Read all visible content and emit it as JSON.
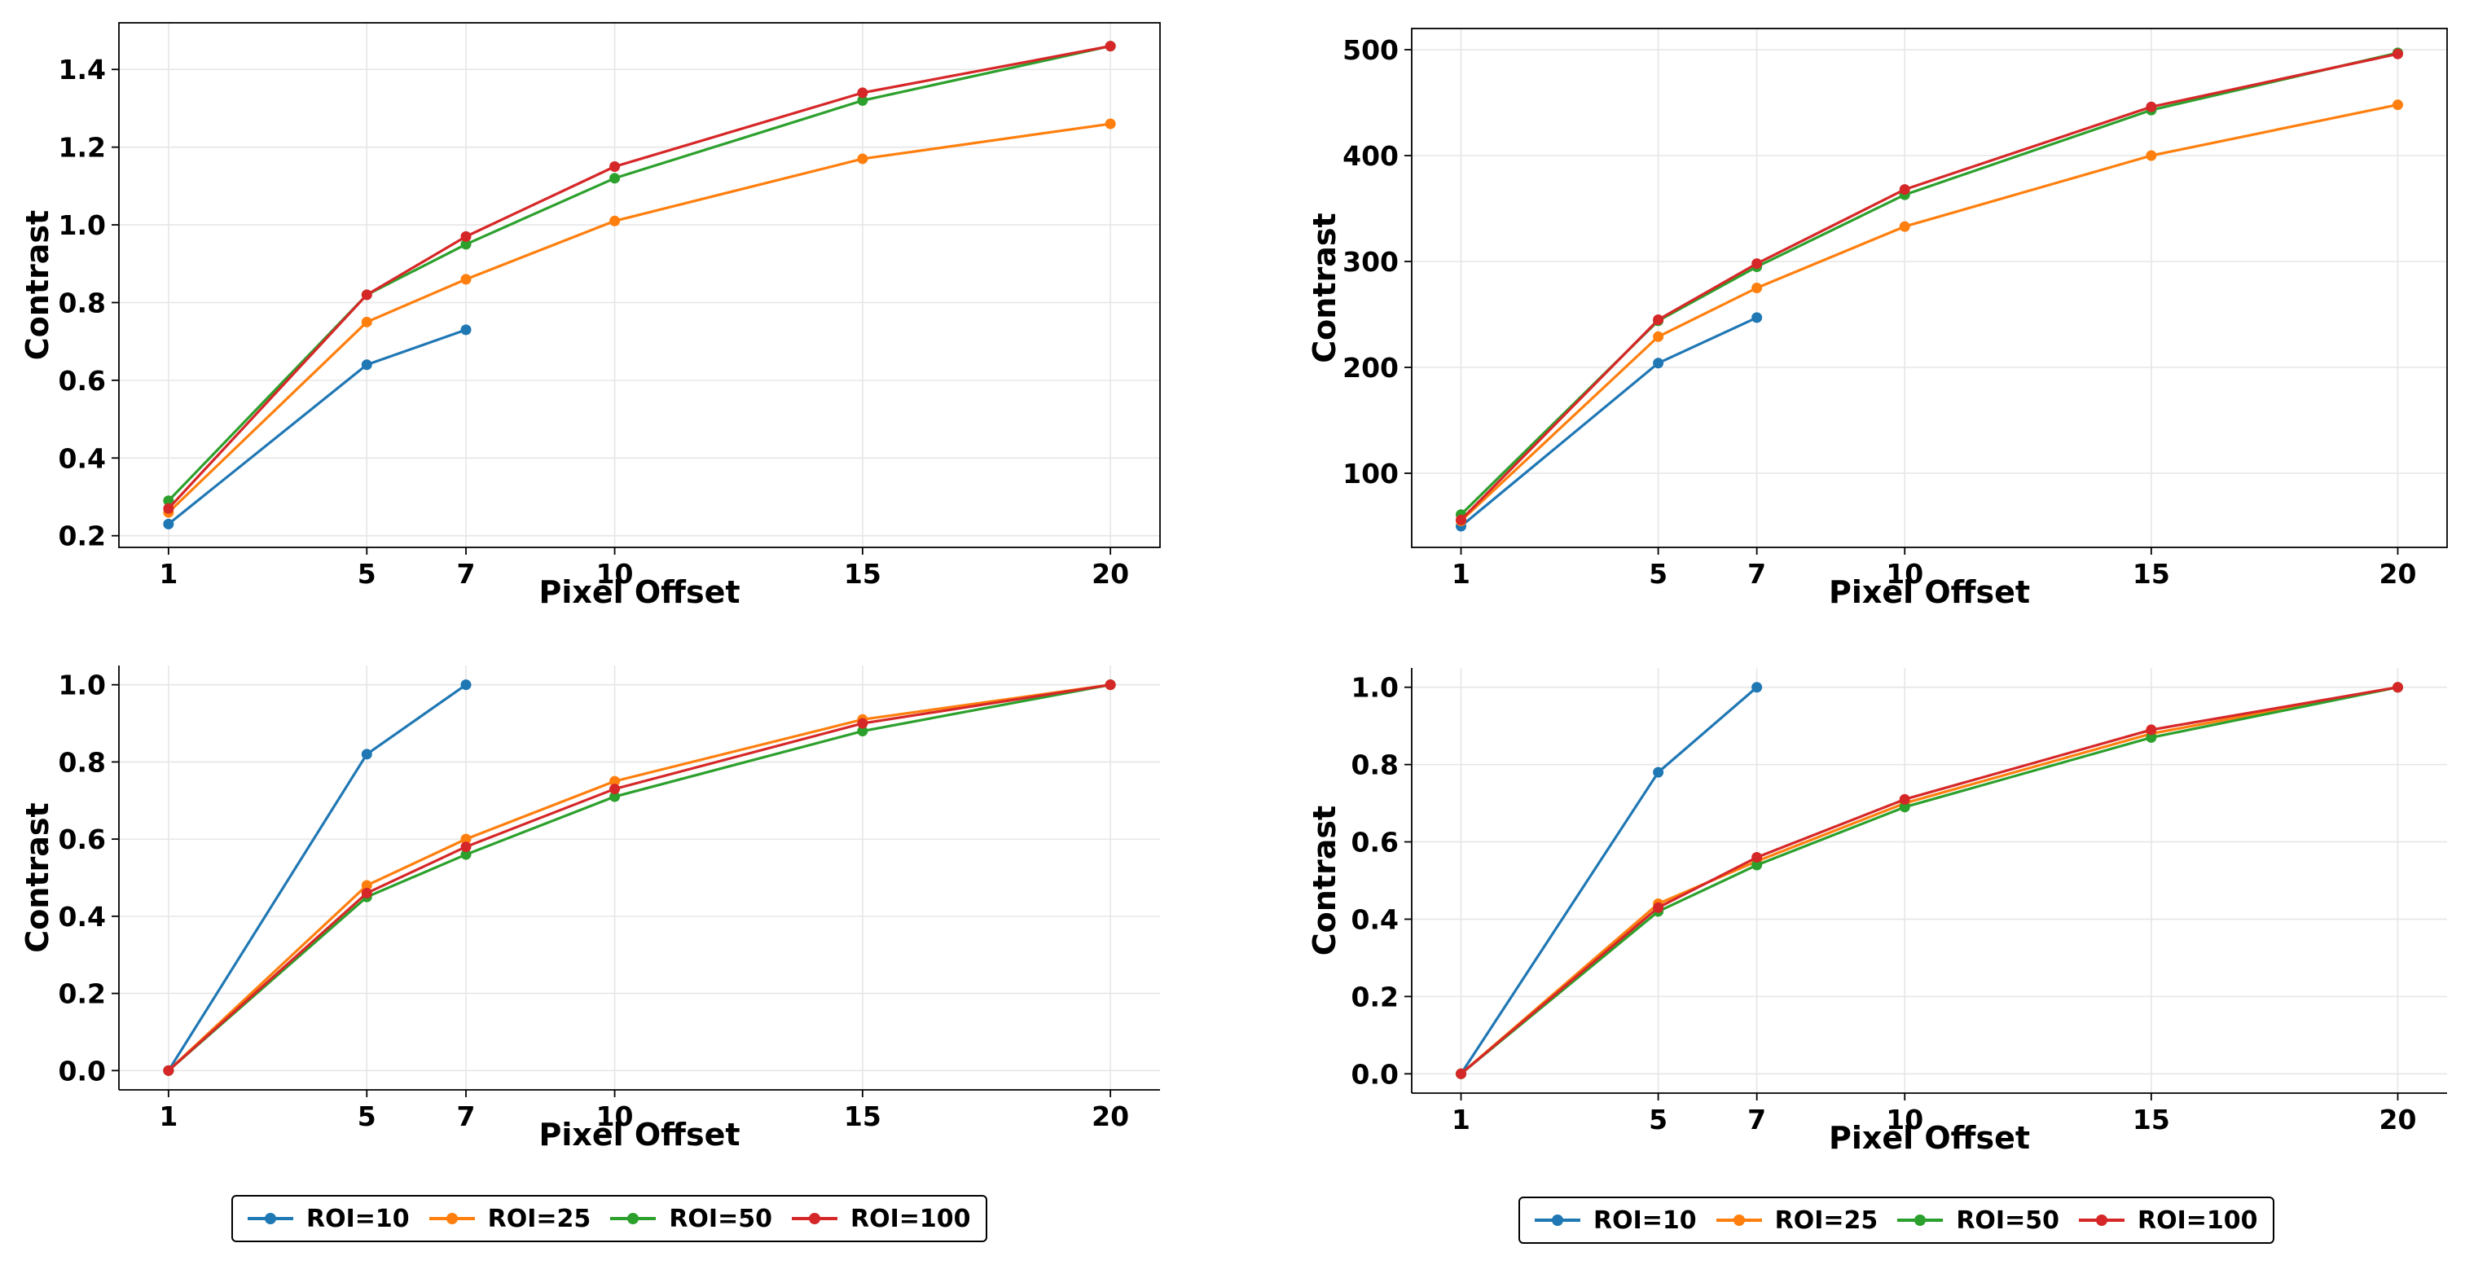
{
  "chart_data": [
    {
      "type": "line",
      "position": "top-left",
      "title": "",
      "xlabel": "Pixel Offset",
      "ylabel": "Contrast",
      "x": [
        1,
        5,
        7,
        10,
        15,
        20
      ],
      "xticks": [
        1,
        5,
        7,
        10,
        15,
        20
      ],
      "xlim": [
        0,
        21
      ],
      "ylim": [
        0.17,
        1.52
      ],
      "yticks": [
        0.2,
        0.4,
        0.6,
        0.8,
        1.0,
        1.2,
        1.4
      ],
      "ytick_labels": [
        "0.2",
        "0.4",
        "0.6",
        "0.8",
        "1.0",
        "1.2",
        "1.4"
      ],
      "series": [
        {
          "name": "ROI=10",
          "values": [
            0.23,
            0.64,
            0.73,
            null,
            null,
            null
          ]
        },
        {
          "name": "ROI=25",
          "values": [
            0.26,
            0.75,
            0.86,
            1.01,
            1.17,
            1.26
          ]
        },
        {
          "name": "ROI=50",
          "values": [
            0.29,
            0.82,
            0.95,
            1.12,
            1.32,
            1.46
          ]
        },
        {
          "name": "ROI=100",
          "values": [
            0.27,
            0.82,
            0.97,
            1.15,
            1.34,
            1.46
          ]
        }
      ]
    },
    {
      "type": "line",
      "position": "top-right",
      "title": "",
      "xlabel": "Pixel Offset",
      "ylabel": "Contrast",
      "x": [
        1,
        5,
        7,
        10,
        15,
        20
      ],
      "xticks": [
        1,
        5,
        7,
        10,
        15,
        20
      ],
      "xlim": [
        0,
        21
      ],
      "ylim": [
        30,
        520
      ],
      "yticks": [
        100,
        200,
        300,
        400,
        500
      ],
      "ytick_labels": [
        "100",
        "200",
        "300",
        "400",
        "500"
      ],
      "series": [
        {
          "name": "ROI=10",
          "values": [
            50,
            204,
            247,
            null,
            null,
            null
          ]
        },
        {
          "name": "ROI=25",
          "values": [
            55,
            229,
            275,
            333,
            400,
            448
          ]
        },
        {
          "name": "ROI=50",
          "values": [
            61,
            244,
            295,
            363,
            443,
            497
          ]
        },
        {
          "name": "ROI=100",
          "values": [
            56,
            245,
            298,
            368,
            446,
            496
          ]
        }
      ]
    },
    {
      "type": "line",
      "position": "bottom-left",
      "title": "",
      "xlabel": "Pixel Offset",
      "ylabel": "Contrast",
      "x": [
        1,
        5,
        7,
        10,
        15,
        20
      ],
      "xticks": [
        1,
        5,
        7,
        10,
        15,
        20
      ],
      "xlim": [
        0,
        21
      ],
      "ylim": [
        -0.05,
        1.05
      ],
      "yticks": [
        0.0,
        0.2,
        0.4,
        0.6,
        0.8,
        1.0
      ],
      "ytick_labels": [
        "0.0",
        "0.2",
        "0.4",
        "0.6",
        "0.8",
        "1.0"
      ],
      "series": [
        {
          "name": "ROI=10",
          "values": [
            0.0,
            0.82,
            1.0,
            null,
            null,
            null
          ]
        },
        {
          "name": "ROI=25",
          "values": [
            0.0,
            0.48,
            0.6,
            0.75,
            0.91,
            1.0
          ]
        },
        {
          "name": "ROI=50",
          "values": [
            0.0,
            0.45,
            0.56,
            0.71,
            0.88,
            1.0
          ]
        },
        {
          "name": "ROI=100",
          "values": [
            0.0,
            0.46,
            0.58,
            0.73,
            0.9,
            1.0
          ]
        }
      ]
    },
    {
      "type": "line",
      "position": "bottom-right",
      "title": "",
      "xlabel": "Pixel Offset",
      "ylabel": "Contrast",
      "x": [
        1,
        5,
        7,
        10,
        15,
        20
      ],
      "xticks": [
        1,
        5,
        7,
        10,
        15,
        20
      ],
      "xlim": [
        0,
        21
      ],
      "ylim": [
        -0.05,
        1.05
      ],
      "yticks": [
        0.0,
        0.2,
        0.4,
        0.6,
        0.8,
        1.0
      ],
      "ytick_labels": [
        "0.0",
        "0.2",
        "0.4",
        "0.6",
        "0.8",
        "1.0"
      ],
      "series": [
        {
          "name": "ROI=10",
          "values": [
            0.0,
            0.78,
            1.0,
            null,
            null,
            null
          ]
        },
        {
          "name": "ROI=25",
          "values": [
            0.0,
            0.44,
            0.55,
            0.7,
            0.88,
            1.0
          ]
        },
        {
          "name": "ROI=50",
          "values": [
            0.0,
            0.42,
            0.54,
            0.69,
            0.87,
            1.0
          ]
        },
        {
          "name": "ROI=100",
          "values": [
            0.0,
            0.43,
            0.56,
            0.71,
            0.89,
            1.0
          ]
        }
      ]
    }
  ],
  "colors": {
    "ROI=10": "#1f77b4",
    "ROI=25": "#ff7f0e",
    "ROI=50": "#2ca02c",
    "ROI=100": "#d62728"
  },
  "legends": [
    {
      "position": "bottom-left",
      "labels": [
        "ROI=10",
        "ROI=25",
        "ROI=50",
        "ROI=100"
      ]
    },
    {
      "position": "bottom-right",
      "labels": [
        "ROI=10",
        "ROI=25",
        "ROI=50",
        "ROI=100"
      ]
    }
  ]
}
